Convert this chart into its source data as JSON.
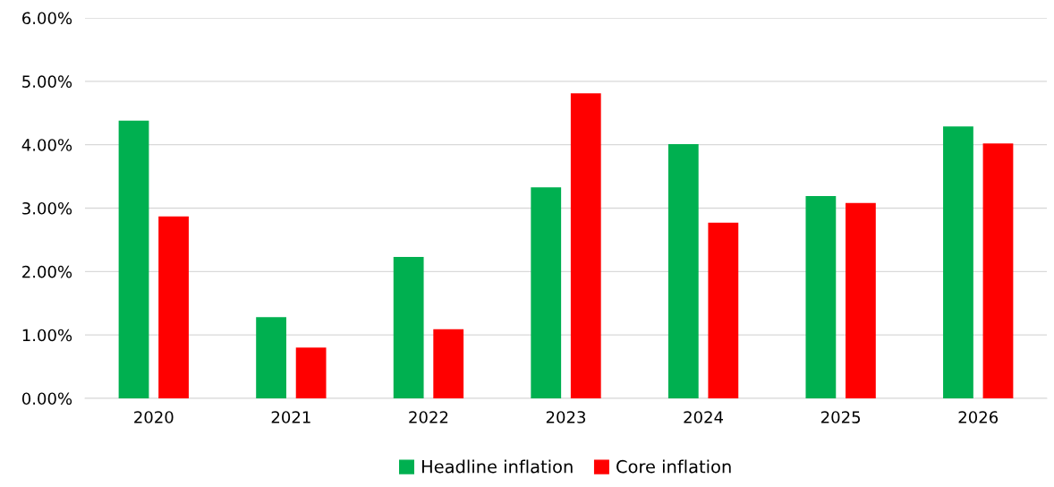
{
  "chart_data": {
    "type": "bar",
    "categories": [
      "2020",
      "2021",
      "2022",
      "2023",
      "2024",
      "2025",
      "2026"
    ],
    "series": [
      {
        "name": "Headline inflation",
        "color": "#00b050",
        "values": [
          4.38,
          1.28,
          2.23,
          3.33,
          4.01,
          3.19,
          4.29
        ]
      },
      {
        "name": "Core inflation",
        "color": "#ff0000",
        "values": [
          2.87,
          0.8,
          1.09,
          4.81,
          2.77,
          3.08,
          4.02
        ]
      }
    ],
    "ylim": [
      0,
      6
    ],
    "yticks": [
      {
        "value": 0,
        "label": "0.00%"
      },
      {
        "value": 1,
        "label": "1.00%"
      },
      {
        "value": 2,
        "label": "2.00%"
      },
      {
        "value": 3,
        "label": "3.00%"
      },
      {
        "value": 4,
        "label": "4.00%"
      },
      {
        "value": 5,
        "label": "5.00%"
      },
      {
        "value": 6,
        "label": "6.00%"
      }
    ],
    "grid": "y",
    "legend": "bottom"
  }
}
